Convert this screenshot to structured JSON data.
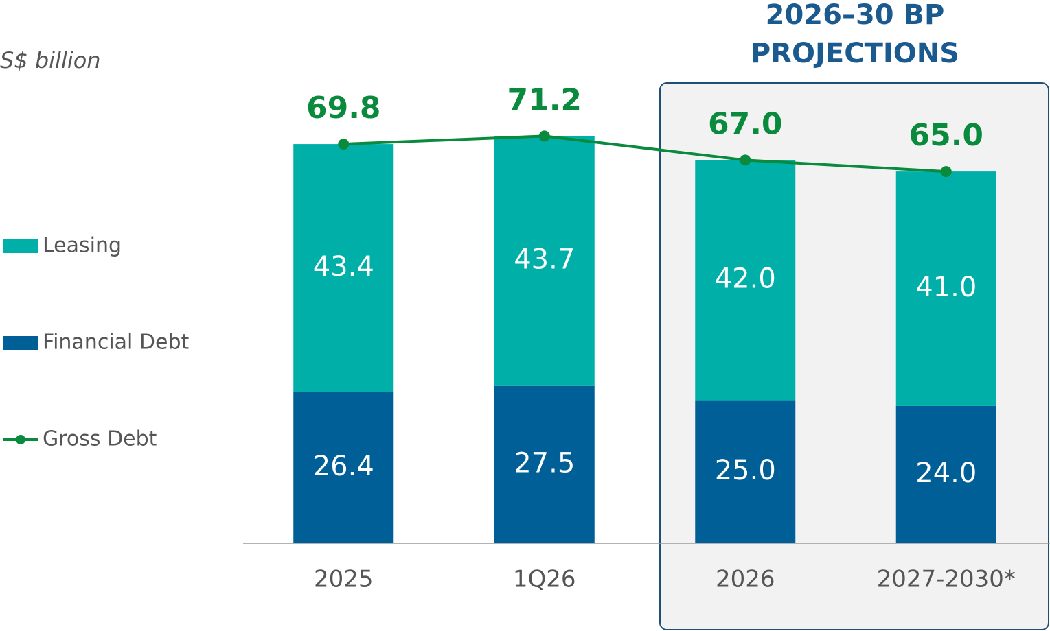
{
  "chart_data": {
    "type": "stacked_bar_line",
    "unit_label": "S$ billion",
    "annotation": [
      "2026–30 BP",
      "PROJECTIONS"
    ],
    "categories": [
      "2025",
      "1Q26",
      "2026",
      "2027-2030*"
    ],
    "ylim": [
      0,
      95
    ],
    "series": [
      {
        "name": "Financial Debt",
        "color": "#005f97",
        "kind": "bar",
        "values": [
          26.4,
          27.5,
          25,
          24
        ],
        "value_labels": [
          "26.4",
          "27.5",
          "25.0",
          "24.0"
        ]
      },
      {
        "name": "Leasing",
        "color": "#00b0a8",
        "kind": "bar",
        "values": [
          43.4,
          43.7,
          42,
          41
        ],
        "value_labels": [
          "43.4",
          "43.7",
          "42.0",
          "41.0"
        ]
      },
      {
        "name": "Gross Debt",
        "color": "#0a8a3c",
        "kind": "line",
        "values": [
          69.8,
          71.2,
          67,
          65
        ],
        "value_labels": [
          "69.8",
          "71.2",
          "67.0",
          "65.0"
        ]
      }
    ]
  }
}
